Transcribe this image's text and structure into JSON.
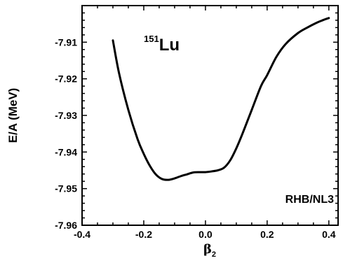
{
  "chart_data": {
    "type": "line",
    "xlabel": "β",
    "xlabel_subscript": "2",
    "ylabel": "E/A  (MeV)",
    "xlim": [
      -0.4,
      0.43
    ],
    "ylim": [
      -7.96,
      -7.9
    ],
    "x_ticks": [
      -0.4,
      -0.2,
      0.0,
      0.2,
      0.4
    ],
    "x_tick_labels": [
      "-0.4",
      "-0.2",
      "0.0",
      "0.2",
      "0.4"
    ],
    "y_ticks": [
      -7.91,
      -7.92,
      -7.93,
      -7.94,
      -7.95,
      -7.96
    ],
    "y_tick_labels": [
      "-7.91",
      "-7.92",
      "-7.93",
      "-7.94",
      "-7.95",
      "-7.96"
    ],
    "grid": false,
    "annotations": {
      "nucleus_mass": "151",
      "nucleus_symbol": "Lu",
      "model": "RHB/NL3"
    },
    "series": [
      {
        "x": [
          -0.3,
          -0.28,
          -0.25,
          -0.22,
          -0.2,
          -0.18,
          -0.16,
          -0.14,
          -0.12,
          -0.1,
          -0.08,
          -0.06,
          -0.04,
          -0.02,
          0.0,
          0.02,
          0.04,
          0.06,
          0.08,
          0.1,
          0.12,
          0.15,
          0.18,
          0.2,
          0.23,
          0.26,
          0.3,
          0.33,
          0.36,
          0.38,
          0.4
        ],
        "y": [
          -7.9095,
          -7.9185,
          -7.9285,
          -7.9365,
          -7.9405,
          -7.9438,
          -7.9462,
          -7.9474,
          -7.9476,
          -7.9472,
          -7.9466,
          -7.9461,
          -7.9456,
          -7.9455,
          -7.9455,
          -7.9453,
          -7.945,
          -7.9443,
          -7.9423,
          -7.939,
          -7.935,
          -7.9285,
          -7.922,
          -7.919,
          -7.914,
          -7.9105,
          -7.9075,
          -7.906,
          -7.9047,
          -7.904,
          -7.9034
        ]
      }
    ]
  }
}
